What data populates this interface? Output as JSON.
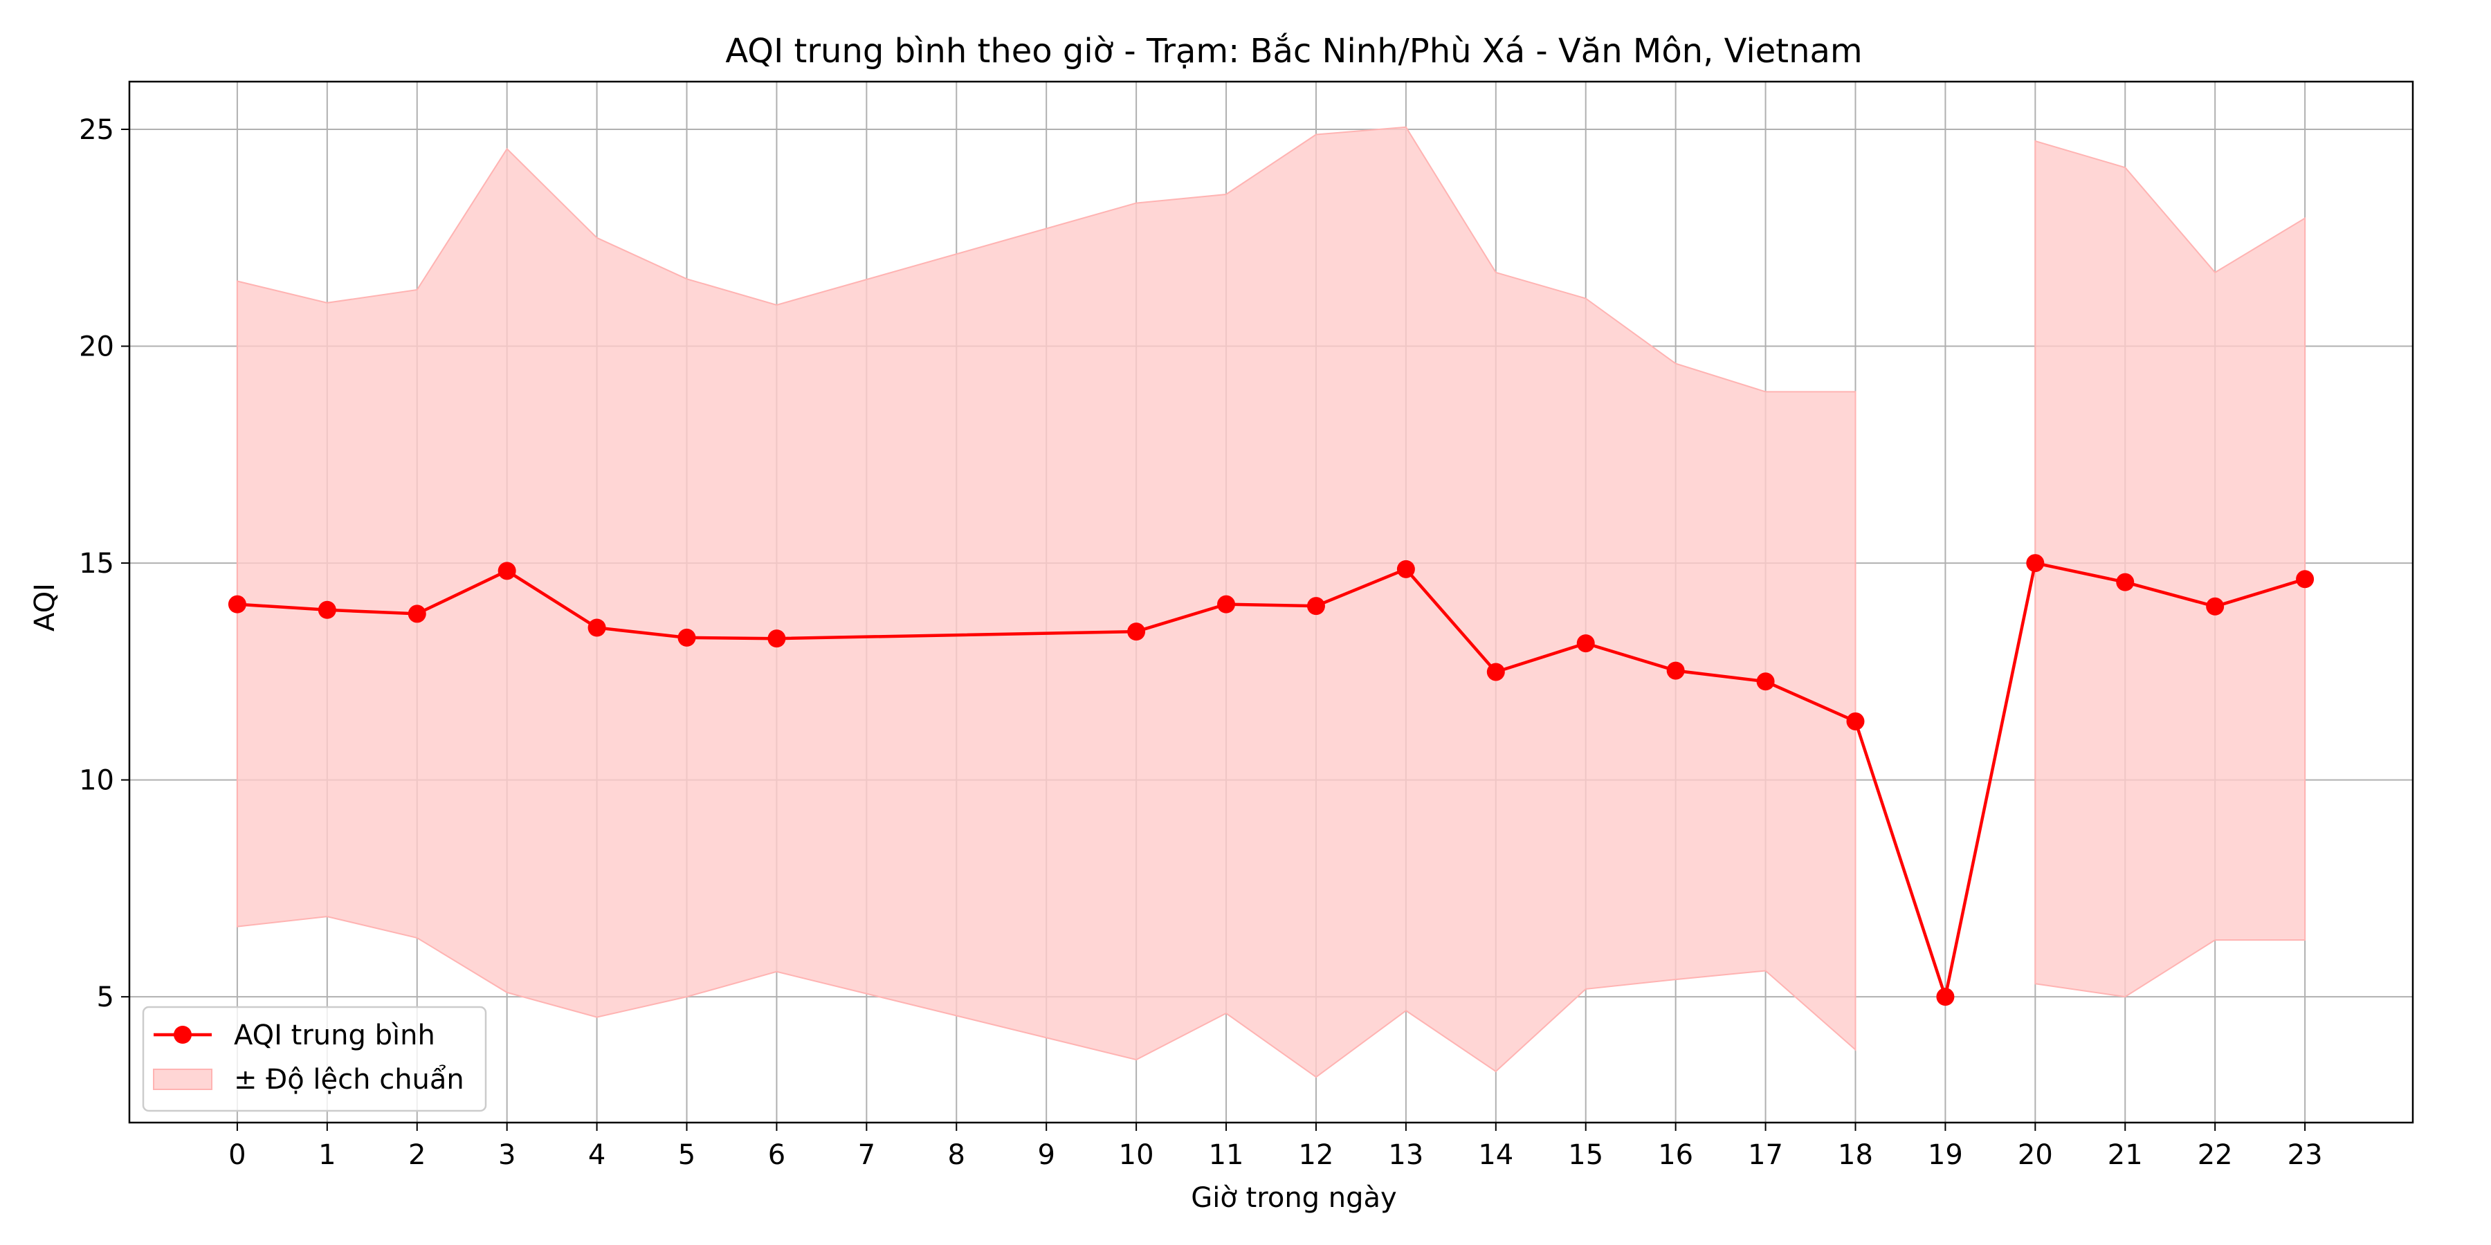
{
  "chart_data": {
    "type": "line",
    "title": "AQI trung bình theo giờ - Trạm: Bắc Ninh/Phù Xá - Văn Môn, Vietnam",
    "xlabel": "Giờ trong ngày",
    "ylabel": "AQI",
    "xlim": [
      -1.2,
      24.2
    ],
    "ylim": [
      2.1,
      26.1
    ],
    "x_ticks": [
      0,
      1,
      2,
      3,
      4,
      5,
      6,
      7,
      8,
      9,
      10,
      11,
      12,
      13,
      14,
      15,
      16,
      17,
      18,
      19,
      20,
      21,
      22,
      23
    ],
    "y_ticks": [
      5,
      10,
      15,
      20,
      25
    ],
    "grid": true,
    "legend_position": "lower left",
    "colors": {
      "line": "#ff0000",
      "band": "#ffcccb",
      "grid": "#b0b0b0"
    },
    "series": [
      {
        "name": "AQI trung bình",
        "x": [
          0,
          1,
          2,
          3,
          4,
          5,
          6,
          10,
          11,
          12,
          13,
          14,
          15,
          16,
          17,
          18,
          19,
          20,
          21,
          22,
          23
        ],
        "values": [
          14.05,
          13.92,
          13.83,
          14.82,
          13.51,
          13.28,
          13.26,
          13.42,
          14.05,
          14.01,
          14.86,
          12.49,
          13.15,
          12.52,
          12.27,
          11.35,
          5.0,
          15.0,
          14.56,
          14.0,
          14.63
        ],
        "marker": "circle"
      }
    ],
    "band": {
      "name": "± Độ lệch chuẩn",
      "segments": [
        {
          "x": [
            0,
            1,
            2,
            3,
            4,
            5,
            6,
            10,
            11,
            12,
            13,
            14,
            15,
            16,
            17,
            18
          ],
          "upper": [
            21.5,
            21.0,
            21.3,
            24.55,
            22.5,
            21.55,
            20.95,
            23.3,
            23.5,
            24.88,
            25.05,
            21.7,
            21.1,
            19.6,
            18.95,
            18.95
          ],
          "lower": [
            6.62,
            6.85,
            6.36,
            5.1,
            4.53,
            5.0,
            5.58,
            3.55,
            4.62,
            3.15,
            4.68,
            3.28,
            5.18,
            5.4,
            5.6,
            3.78
          ]
        },
        {
          "x": [
            20,
            21,
            22,
            23
          ],
          "upper": [
            24.73,
            24.12,
            21.7,
            22.95
          ],
          "lower": [
            5.3,
            5.0,
            6.31,
            6.31
          ]
        }
      ]
    }
  }
}
